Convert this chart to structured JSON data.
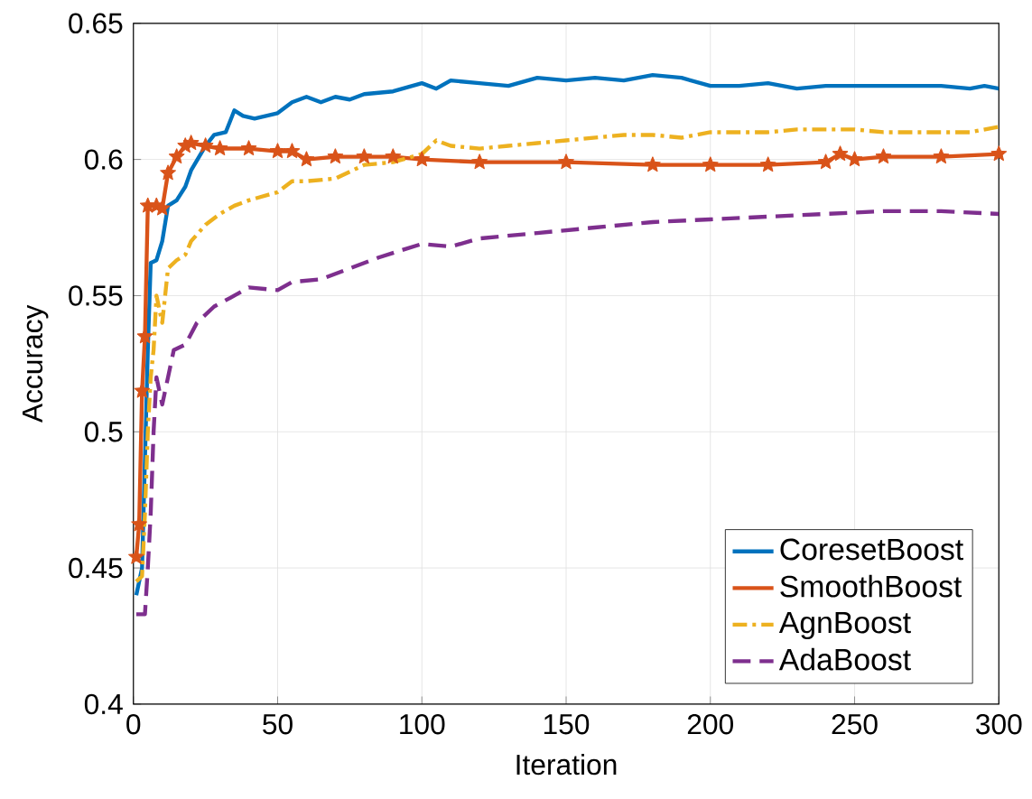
{
  "chart_data": {
    "type": "line",
    "xlabel": "Iteration",
    "ylabel": "Accuracy",
    "xlim": [
      0,
      300
    ],
    "ylim": [
      0.4,
      0.65
    ],
    "xticks": [
      0,
      50,
      100,
      150,
      200,
      250,
      300
    ],
    "yticks": [
      0.4,
      0.45,
      0.5,
      0.55,
      0.6,
      0.65
    ],
    "grid": true,
    "legend": "bottom right",
    "series": [
      {
        "name": "CoresetBoost",
        "color": "#0072bd",
        "line_style": "solid",
        "marker": "none",
        "x": [
          1,
          3,
          5,
          6,
          8,
          10,
          12,
          15,
          18,
          20,
          25,
          28,
          32,
          35,
          38,
          42,
          50,
          55,
          60,
          65,
          70,
          75,
          80,
          90,
          100,
          105,
          110,
          120,
          130,
          140,
          150,
          160,
          170,
          180,
          190,
          200,
          210,
          220,
          230,
          240,
          250,
          260,
          270,
          280,
          290,
          295,
          300
        ],
        "values": [
          0.44,
          0.45,
          0.53,
          0.562,
          0.563,
          0.57,
          0.583,
          0.585,
          0.59,
          0.596,
          0.605,
          0.609,
          0.61,
          0.618,
          0.616,
          0.615,
          0.617,
          0.621,
          0.623,
          0.621,
          0.623,
          0.622,
          0.624,
          0.625,
          0.628,
          0.626,
          0.629,
          0.628,
          0.627,
          0.63,
          0.629,
          0.63,
          0.629,
          0.631,
          0.63,
          0.627,
          0.627,
          0.628,
          0.626,
          0.627,
          0.627,
          0.627,
          0.627,
          0.627,
          0.626,
          0.627,
          0.626
        ]
      },
      {
        "name": "SmoothBoost",
        "color": "#d95319",
        "line_style": "solid",
        "marker": "star",
        "x": [
          1,
          2,
          3,
          4,
          5,
          8,
          10,
          12,
          15,
          18,
          20,
          25,
          30,
          40,
          50,
          55,
          60,
          70,
          80,
          90,
          100,
          120,
          150,
          180,
          200,
          220,
          240,
          245,
          250,
          260,
          280,
          300
        ],
        "values": [
          0.454,
          0.466,
          0.515,
          0.535,
          0.583,
          0.583,
          0.582,
          0.595,
          0.601,
          0.605,
          0.606,
          0.605,
          0.604,
          0.604,
          0.603,
          0.603,
          0.6,
          0.601,
          0.601,
          0.601,
          0.6,
          0.599,
          0.599,
          0.598,
          0.598,
          0.598,
          0.599,
          0.602,
          0.6,
          0.601,
          0.601,
          0.602
        ]
      },
      {
        "name": "AgnBoost",
        "color": "#edb120",
        "line_style": "dashdot",
        "marker": "none",
        "x": [
          1,
          3,
          4,
          5,
          6,
          7,
          8,
          10,
          12,
          15,
          18,
          20,
          25,
          30,
          35,
          40,
          50,
          55,
          60,
          70,
          80,
          90,
          100,
          105,
          110,
          120,
          130,
          140,
          150,
          160,
          170,
          180,
          190,
          200,
          210,
          220,
          230,
          240,
          250,
          260,
          270,
          280,
          290,
          300
        ],
        "values": [
          0.445,
          0.447,
          0.47,
          0.5,
          0.52,
          0.53,
          0.55,
          0.54,
          0.56,
          0.563,
          0.565,
          0.57,
          0.576,
          0.58,
          0.583,
          0.585,
          0.588,
          0.592,
          0.592,
          0.593,
          0.598,
          0.599,
          0.602,
          0.607,
          0.605,
          0.604,
          0.605,
          0.606,
          0.607,
          0.608,
          0.609,
          0.609,
          0.608,
          0.61,
          0.61,
          0.61,
          0.611,
          0.611,
          0.611,
          0.61,
          0.61,
          0.61,
          0.61,
          0.612
        ]
      },
      {
        "name": "AdaBoost",
        "color": "#7e2f8e",
        "line_style": "dashed",
        "marker": "none",
        "x": [
          1,
          4,
          5,
          6,
          7,
          8,
          10,
          12,
          14,
          18,
          22,
          28,
          35,
          40,
          50,
          55,
          65,
          75,
          85,
          100,
          110,
          120,
          140,
          160,
          180,
          200,
          220,
          240,
          260,
          280,
          300
        ],
        "values": [
          0.433,
          0.433,
          0.45,
          0.47,
          0.5,
          0.52,
          0.51,
          0.52,
          0.53,
          0.532,
          0.54,
          0.546,
          0.55,
          0.553,
          0.552,
          0.555,
          0.556,
          0.56,
          0.564,
          0.569,
          0.568,
          0.571,
          0.573,
          0.575,
          0.577,
          0.578,
          0.579,
          0.58,
          0.581,
          0.581,
          0.58
        ]
      }
    ]
  }
}
